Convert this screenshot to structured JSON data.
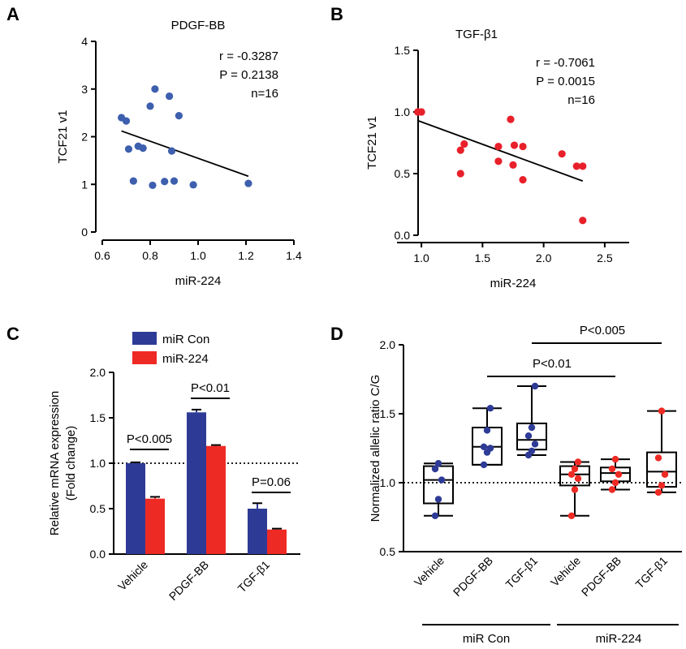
{
  "colors": {
    "blue": "#2e3b96",
    "red": "#ee2a24",
    "scatter_blue": "#3d5fae",
    "scatter_red": "#e8202a",
    "black": "#000000"
  },
  "chart_data": [
    {
      "panel": "A",
      "type": "scatter",
      "title": "PDGF-BB",
      "xlabel": "miR-224",
      "ylabel": "TCF21 v1",
      "xlim": [
        0.6,
        1.4
      ],
      "ylim": [
        0,
        4
      ],
      "xticks": [
        "0.6",
        "0.8",
        "1.0",
        "1.2",
        "1.4"
      ],
      "yticks": [
        "0",
        "1",
        "2",
        "3",
        "4"
      ],
      "stats": [
        "r = -0.3287",
        "P = 0.2138",
        "n=16"
      ],
      "points": [
        [
          0.68,
          2.4
        ],
        [
          0.7,
          2.33
        ],
        [
          0.71,
          1.74
        ],
        [
          0.73,
          1.07
        ],
        [
          0.75,
          1.8
        ],
        [
          0.77,
          1.76
        ],
        [
          0.8,
          2.64
        ],
        [
          0.81,
          0.98
        ],
        [
          0.82,
          3.0
        ],
        [
          0.86,
          1.06
        ],
        [
          0.88,
          2.85
        ],
        [
          0.89,
          1.7
        ],
        [
          0.9,
          1.07
        ],
        [
          0.92,
          2.44
        ],
        [
          0.98,
          0.99
        ],
        [
          1.21,
          1.02
        ]
      ],
      "trend": [
        [
          0.68,
          2.12
        ],
        [
          1.21,
          1.17
        ]
      ]
    },
    {
      "panel": "B",
      "type": "scatter",
      "title": "TGF-β1",
      "xlabel": "miR-224",
      "ylabel": "TCF21 v1",
      "xlim": [
        0.8,
        2.7
      ],
      "ylim": [
        0,
        1.5
      ],
      "xticks": [
        "1.0",
        "1.5",
        "2.0",
        "2.5"
      ],
      "yticks": [
        "0.0",
        "0.5",
        "1.0",
        "1.5"
      ],
      "stats": [
        "r = -0.7061",
        "P = 0.0015",
        "n=16"
      ],
      "points": [
        [
          0.97,
          1.0
        ],
        [
          1.0,
          1.0
        ],
        [
          1.32,
          0.69
        ],
        [
          1.35,
          0.74
        ],
        [
          1.32,
          0.5
        ],
        [
          1.63,
          0.72
        ],
        [
          1.63,
          0.6
        ],
        [
          1.73,
          0.94
        ],
        [
          1.75,
          0.57
        ],
        [
          1.76,
          0.73
        ],
        [
          1.83,
          0.45
        ],
        [
          1.83,
          0.72
        ],
        [
          2.15,
          0.66
        ],
        [
          2.27,
          0.56
        ],
        [
          2.32,
          0.56
        ],
        [
          2.32,
          0.12
        ]
      ],
      "trend": [
        [
          0.97,
          0.93
        ],
        [
          2.32,
          0.44
        ]
      ]
    },
    {
      "panel": "C",
      "type": "bar",
      "ylabel": "Relative mRNA expression\n(Fold change)",
      "ylabel_lines": [
        "Relative mRNA expression",
        "(Fold change)"
      ],
      "ylim": [
        0,
        2.0
      ],
      "yticks": [
        "0.0",
        "0.5",
        "1.0",
        "1.5",
        "2.0"
      ],
      "categories": [
        "Vehicle",
        "PDGF-BB",
        "TGF-β1"
      ],
      "series": [
        {
          "name": "miR Con",
          "values": [
            1.0,
            1.56,
            0.5
          ],
          "errors": [
            0.01,
            0.03,
            0.06
          ]
        },
        {
          "name": "miR-224",
          "values": [
            0.61,
            1.19,
            0.27
          ],
          "errors": [
            0.02,
            0.01,
            0.01
          ]
        }
      ],
      "reference_line": 1.0,
      "significance": [
        "P<0.005",
        "P<0.01",
        "P=0.06"
      ]
    },
    {
      "panel": "D",
      "type": "box",
      "ylabel": "Normalized allelic ratio C/G",
      "ylim": [
        0.5,
        2.0
      ],
      "yticks": [
        "0.5",
        "1.0",
        "1.5",
        "2.0"
      ],
      "categories": [
        "Vehicle",
        "PDGF-BB",
        "TGF-β1",
        "Vehicle",
        "PDGF-BB",
        "TGF-β1"
      ],
      "groups": [
        "miR Con",
        "miR-224"
      ],
      "reference_line": 1.0,
      "boxes": [
        {
          "min": 0.76,
          "q1": 0.85,
          "median": 1.02,
          "q3": 1.12,
          "max": 1.14,
          "points": [
            0.76,
            0.88,
            1.02,
            1.1,
            1.14
          ]
        },
        {
          "min": 1.13,
          "q1": 1.13,
          "median": 1.26,
          "q3": 1.4,
          "max": 1.54,
          "points": [
            1.13,
            1.22,
            1.25,
            1.26,
            1.38,
            1.54
          ]
        },
        {
          "min": 1.2,
          "q1": 1.24,
          "median": 1.31,
          "q3": 1.43,
          "max": 1.7,
          "points": [
            1.2,
            1.23,
            1.28,
            1.34,
            1.4,
            1.7
          ]
        },
        {
          "min": 0.76,
          "q1": 0.98,
          "median": 1.06,
          "q3": 1.12,
          "max": 1.15,
          "points": [
            0.76,
            0.95,
            1.03,
            1.06,
            1.1,
            1.15
          ]
        },
        {
          "min": 0.95,
          "q1": 1.01,
          "median": 1.07,
          "q3": 1.11,
          "max": 1.17,
          "points": [
            0.95,
            1.0,
            1.06,
            1.1,
            1.17
          ]
        },
        {
          "min": 0.93,
          "q1": 0.97,
          "median": 1.08,
          "q3": 1.22,
          "max": 1.52,
          "points": [
            0.93,
            0.98,
            1.06,
            1.18,
            1.52
          ]
        }
      ],
      "significance": [
        "P<0.01",
        "P<0.005"
      ]
    }
  ]
}
